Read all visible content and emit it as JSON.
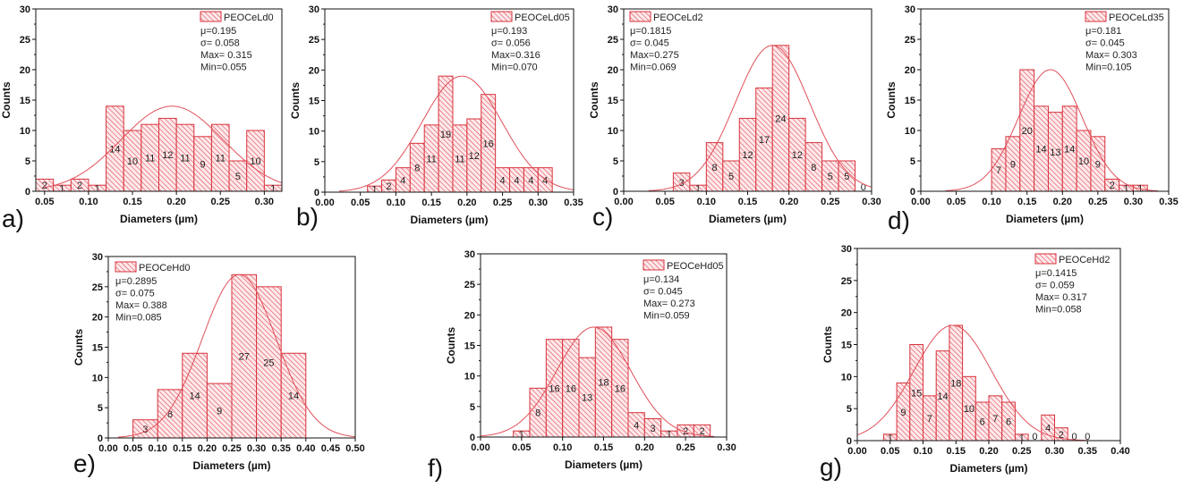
{
  "colors": {
    "bar_stroke": "#d8323c",
    "hatch": "#d8323c",
    "bar_fill": "#fde8ea",
    "fit_curve": "#e0505a",
    "axis": "#111111"
  },
  "chart_data": [
    {
      "type": "bar",
      "panel_label": "a)",
      "legend": "PEOCeLd0",
      "stats": [
        "μ=0.195",
        "σ= 0.058",
        "Max= 0.315",
        "Min=0.055"
      ],
      "xlabel": "Diameters (µm)",
      "ylabel": "Counts",
      "xlim": [
        0.04,
        0.32
      ],
      "ylim": [
        0,
        30
      ],
      "xticks": [
        "0.05",
        "0.10",
        "0.15",
        "0.20",
        "0.25",
        "0.30"
      ],
      "yticks": [
        "0",
        "5",
        "10",
        "15",
        "20",
        "25",
        "30"
      ],
      "bin_start": 0.04,
      "bin_width": 0.02,
      "counts": [
        2,
        1,
        2,
        1,
        14,
        10,
        11,
        12,
        11,
        9,
        11,
        5,
        10,
        1
      ],
      "fit": {
        "center": 0.195,
        "sigma": 0.058,
        "peak": 14,
        "range": [
          0.05,
          0.32
        ]
      }
    },
    {
      "type": "bar",
      "panel_label": "b)",
      "legend": "PEOCeLd05",
      "stats": [
        "μ=0.193",
        "σ= 0.056",
        "Max=0.316",
        "Min=0.070"
      ],
      "xlabel": "Diameters (µm)",
      "ylabel": "Counts",
      "xlim": [
        0,
        0.35
      ],
      "ylim": [
        0,
        30
      ],
      "xticks": [
        "0.00",
        "0.05",
        "0.10",
        "0.15",
        "0.20",
        "0.25",
        "0.30",
        "0.35"
      ],
      "yticks": [
        "0",
        "5",
        "10",
        "15",
        "20",
        "25",
        "30"
      ],
      "bin_start": 0.06,
      "bin_width": 0.02,
      "counts": [
        1,
        2,
        4,
        8,
        11,
        19,
        11,
        12,
        16,
        4,
        4,
        4,
        4
      ],
      "fit": {
        "center": 0.193,
        "sigma": 0.056,
        "peak": 19,
        "range": [
          0.02,
          0.35
        ]
      }
    },
    {
      "type": "bar",
      "panel_label": "c)",
      "legend": "PEOCeLd2",
      "stats": [
        "μ=0.1815",
        "σ= 0.045",
        "Max=0.275",
        "Min=0.069"
      ],
      "xlabel": "Diameters (µm)",
      "ylabel": "Counts",
      "xlim": [
        0,
        0.3
      ],
      "ylim": [
        0,
        30
      ],
      "xticks": [
        "0.00",
        "0.05",
        "0.10",
        "0.15",
        "0.20",
        "0.25",
        "0.30"
      ],
      "yticks": [
        "0",
        "5",
        "10",
        "15",
        "20",
        "25",
        "30"
      ],
      "bin_start": 0.06,
      "bin_width": 0.02,
      "counts": [
        3,
        1,
        8,
        5,
        12,
        17,
        24,
        12,
        8,
        5,
        5,
        0
      ],
      "fit": {
        "center": 0.18,
        "sigma": 0.045,
        "peak": 24,
        "range": [
          0.03,
          0.3
        ]
      }
    },
    {
      "type": "bar",
      "panel_label": "d)",
      "legend": "PEOCeLd35",
      "stats": [
        "μ=0.181",
        "σ= 0.045",
        "Max= 0.303",
        "Min=0.105"
      ],
      "xlabel": "Diameters (µm)",
      "ylabel": "Counts",
      "xlim": [
        0,
        0.35
      ],
      "ylim": [
        0,
        30
      ],
      "xticks": [
        "0.00",
        "0.05",
        "0.10",
        "0.15",
        "0.20",
        "0.25",
        "0.30",
        "0.35"
      ],
      "yticks": [
        "0",
        "5",
        "10",
        "15",
        "20",
        "25",
        "30"
      ],
      "bin_start": 0.1,
      "bin_width": 0.02,
      "counts": [
        7,
        9,
        20,
        14,
        13,
        14,
        10,
        9,
        2,
        1,
        1
      ],
      "fit": {
        "center": 0.183,
        "sigma": 0.045,
        "peak": 20,
        "range": [
          0.035,
          0.335
        ]
      }
    },
    {
      "type": "bar",
      "panel_label": "e)",
      "legend": "PEOCeHd0",
      "stats": [
        "μ=0.2895",
        "σ= 0.075",
        "Max= 0.388",
        "Min=0.085"
      ],
      "xlabel": "Diameters (µm)",
      "ylabel": "Counts",
      "xlim": [
        0,
        0.5
      ],
      "ylim": [
        0,
        30
      ],
      "xticks": [
        "0.00",
        "0.05",
        "0.10",
        "0.15",
        "0.20",
        "0.25",
        "0.30",
        "0.35",
        "0.40",
        "0.45",
        "0.50"
      ],
      "yticks": [
        "0",
        "5",
        "10",
        "15",
        "20",
        "25",
        "30"
      ],
      "bin_start": 0.05,
      "bin_width": 0.05,
      "counts": [
        3,
        8,
        14,
        9,
        27,
        25,
        14
      ],
      "fit": {
        "center": 0.265,
        "sigma": 0.075,
        "peak": 27,
        "range": [
          0.02,
          0.5
        ]
      }
    },
    {
      "type": "bar",
      "panel_label": "f)",
      "legend": "PEOCeHd05",
      "stats": [
        "μ=0.134",
        "σ= 0.045",
        "Max= 0.273",
        "Min=0.059"
      ],
      "xlabel": "Diameters (µm)",
      "ylabel": "Counts",
      "xlim": [
        0,
        0.3
      ],
      "ylim": [
        0,
        30
      ],
      "xticks": [
        "0.00",
        "0.05",
        "0.10",
        "0.15",
        "0.20",
        "0.25",
        "0.30"
      ],
      "yticks": [
        "0",
        "5",
        "10",
        "15",
        "20",
        "25",
        "30"
      ],
      "bin_start": 0.04,
      "bin_width": 0.02,
      "counts": [
        1,
        8,
        16,
        16,
        13,
        18,
        16,
        4,
        3,
        1,
        2,
        2
      ],
      "fit": {
        "center": 0.138,
        "sigma": 0.045,
        "peak": 18,
        "range": [
          0.0,
          0.285
        ]
      }
    },
    {
      "type": "bar",
      "panel_label": "g)",
      "legend": "PEOCeHd2",
      "stats": [
        "μ=0.1415",
        "σ= 0.059",
        "Max= 0.317",
        "Min=0.058"
      ],
      "xlabel": "Diameters (µm)",
      "ylabel": "Counts",
      "xlim": [
        0,
        0.4
      ],
      "ylim": [
        0,
        30
      ],
      "xticks": [
        "0.00",
        "0.05",
        "0.10",
        "0.15",
        "0.20",
        "0.25",
        "0.30",
        "0.35",
        "0.40"
      ],
      "yticks": [
        "0",
        "5",
        "10",
        "15",
        "20",
        "25",
        "30"
      ],
      "bin_start": 0.04,
      "bin_width": 0.02,
      "counts": [
        1,
        9,
        15,
        7,
        14,
        18,
        10,
        6,
        7,
        6,
        1,
        0,
        4,
        2,
        0,
        0
      ],
      "fit": {
        "center": 0.145,
        "sigma": 0.059,
        "peak": 18,
        "range": [
          0.0,
          0.35
        ]
      }
    }
  ]
}
